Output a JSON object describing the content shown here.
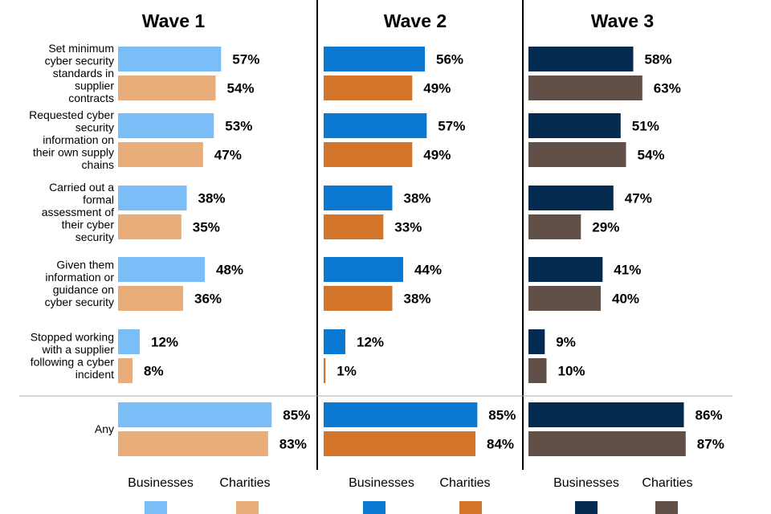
{
  "chart_data": {
    "type": "bar",
    "orientation": "horizontal",
    "xlim": [
      0,
      100
    ],
    "value_suffix": "%",
    "categories": [
      {
        "id": "cat-standards",
        "lines": [
          "Set minimum",
          "cyber security",
          "standards in",
          "supplier",
          "contracts"
        ]
      },
      {
        "id": "cat-requested",
        "lines": [
          "Requested cyber",
          "security",
          "information on",
          "their own supply",
          "chains"
        ]
      },
      {
        "id": "cat-assessment",
        "lines": [
          "Carried out a",
          "formal",
          "assessment of",
          "their cyber",
          "security"
        ]
      },
      {
        "id": "cat-guidance",
        "lines": [
          "Given them",
          "information or",
          "guidance on",
          "cyber security"
        ]
      },
      {
        "id": "cat-stopped",
        "lines": [
          "Stopped working",
          "with a supplier",
          "following a cyber",
          "incident"
        ]
      },
      {
        "id": "cat-any",
        "lines": [
          "Any"
        ]
      }
    ],
    "panels": [
      {
        "id": "wave-1",
        "title": "Wave 1",
        "series": [
          {
            "name": "Businesses",
            "color": "#7bbdf6",
            "values": [
              57,
              53,
              38,
              48,
              12,
              85
            ]
          },
          {
            "name": "Charities",
            "color": "#e8ad7b",
            "values": [
              54,
              47,
              35,
              36,
              8,
              83
            ]
          }
        ]
      },
      {
        "id": "wave-2",
        "title": "Wave 2",
        "series": [
          {
            "name": "Businesses",
            "color": "#0b78d2",
            "values": [
              56,
              57,
              38,
              44,
              12,
              85
            ]
          },
          {
            "name": "Charities",
            "color": "#d2742a",
            "values": [
              49,
              49,
              33,
              38,
              1,
              84
            ]
          }
        ]
      },
      {
        "id": "wave-3",
        "title": "Wave 3",
        "series": [
          {
            "name": "Businesses",
            "color": "#052a50",
            "values": [
              58,
              51,
              47,
              41,
              9,
              86
            ]
          },
          {
            "name": "Charities",
            "color": "#605048",
            "values": [
              63,
              54,
              29,
              40,
              10,
              87
            ]
          }
        ]
      }
    ]
  }
}
